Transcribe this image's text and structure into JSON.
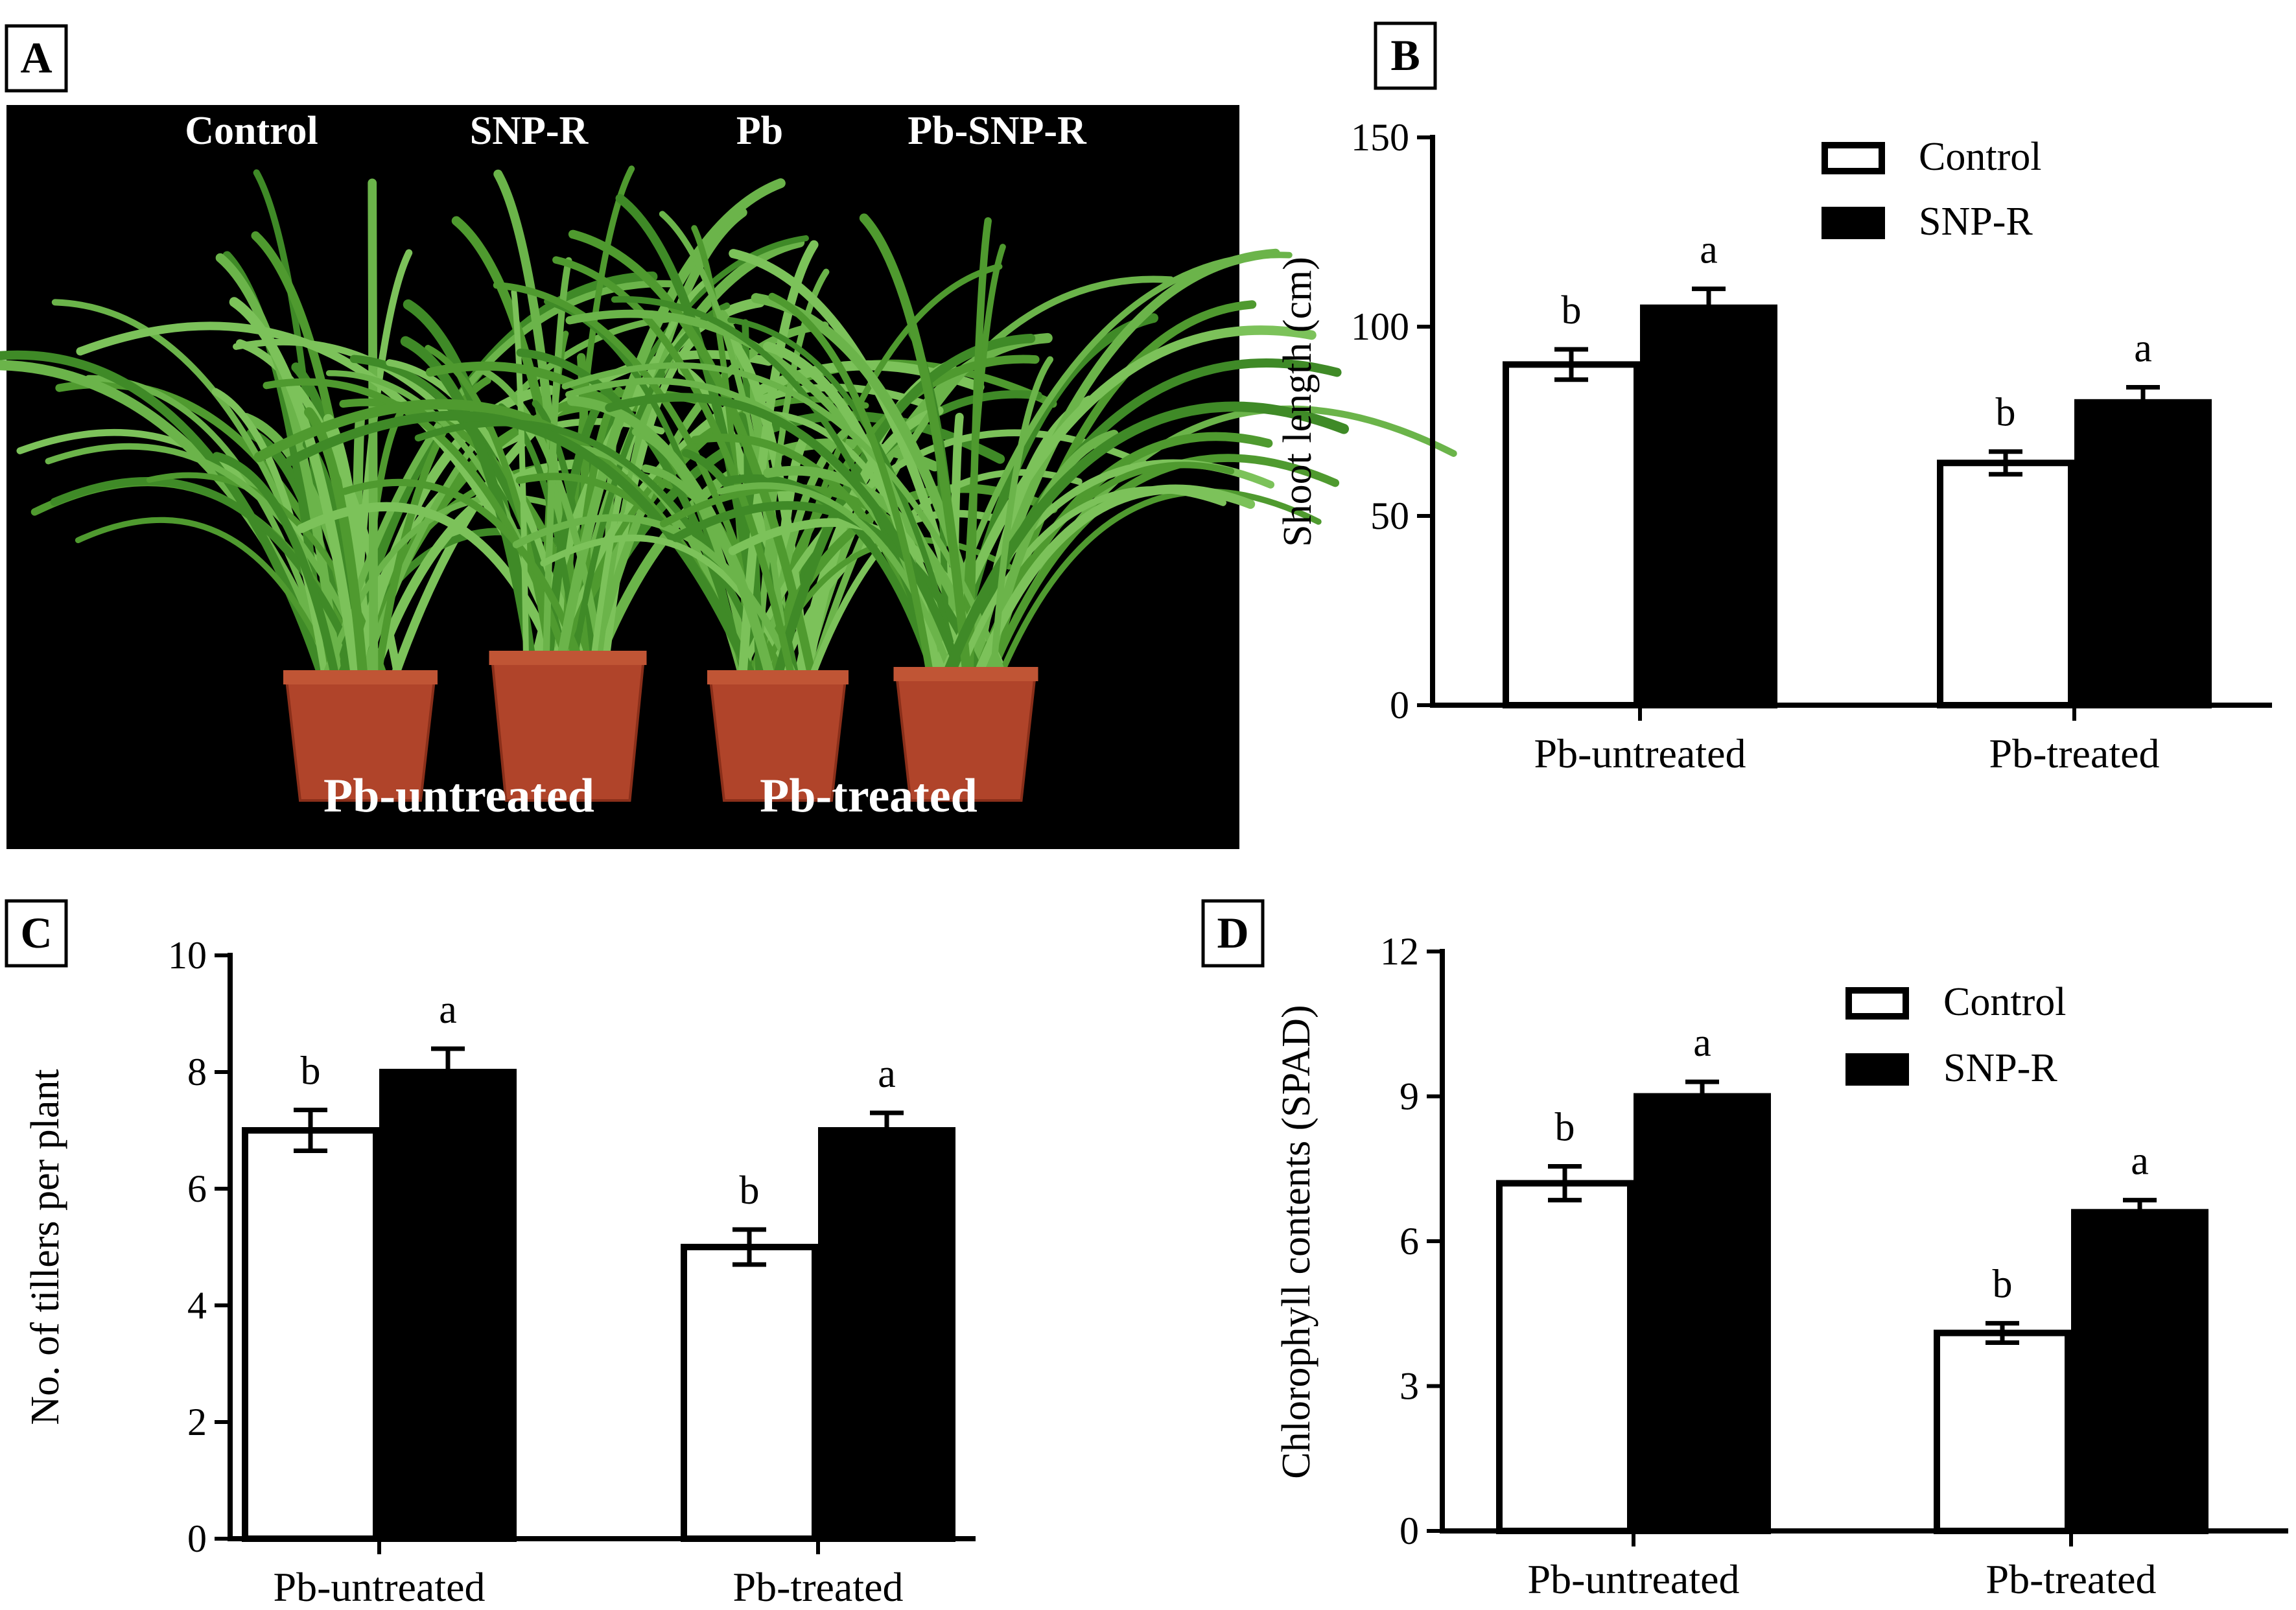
{
  "photo": {
    "panel_label": "A",
    "treatments": [
      "Control",
      "SNP-R",
      "Pb",
      "Pb-SNP-R"
    ],
    "groups": [
      "Pb-untreated",
      "Pb-treated"
    ]
  },
  "legend": {
    "control": "Control",
    "snp": "SNP-R"
  },
  "colors": {
    "control_fill": "#ffffff",
    "snp_fill": "#000000",
    "photo_bg": "#000000",
    "leaf": "#5aa83a",
    "pot": "#b0442a"
  },
  "chart_data": [
    {
      "panel": "B",
      "type": "bar",
      "categories": [
        "Pb-untreated",
        "Pb-treated"
      ],
      "series": [
        {
          "name": "Control",
          "values": [
            90,
            64
          ],
          "errors": [
            4,
            3
          ],
          "letters": [
            "b",
            "b"
          ]
        },
        {
          "name": "SNP-R",
          "values": [
            105,
            80
          ],
          "errors": [
            5,
            4
          ],
          "letters": [
            "a",
            "a"
          ]
        }
      ],
      "ylabel": "Shoot length (cm)",
      "ylim": [
        0,
        150
      ],
      "yticks": [
        0,
        50,
        100,
        150
      ],
      "legend": "top-right"
    },
    {
      "panel": "C",
      "type": "bar",
      "categories": [
        "Pb-untreated",
        "Pb-treated"
      ],
      "series": [
        {
          "name": "Control",
          "values": [
            7.0,
            5.0
          ],
          "errors": [
            0.35,
            0.3
          ],
          "letters": [
            "b",
            "b"
          ]
        },
        {
          "name": "SNP-R",
          "values": [
            8.0,
            7.0
          ],
          "errors": [
            0.4,
            0.3
          ],
          "letters": [
            "a",
            "a"
          ]
        }
      ],
      "ylabel": "No. of tillers per plant",
      "ylim": [
        0,
        10
      ],
      "yticks": [
        0,
        2,
        4,
        6,
        8,
        10
      ],
      "legend": "none"
    },
    {
      "panel": "D",
      "type": "bar",
      "categories": [
        "Pb-untreated",
        "Pb-treated"
      ],
      "series": [
        {
          "name": "Control",
          "values": [
            7.2,
            4.1
          ],
          "errors": [
            0.35,
            0.2
          ],
          "letters": [
            "b",
            "b"
          ]
        },
        {
          "name": "SNP-R",
          "values": [
            9.0,
            6.6
          ],
          "errors": [
            0.3,
            0.25
          ],
          "letters": [
            "a",
            "a"
          ]
        }
      ],
      "ylabel": "Chlorophyll contents (SPAD)",
      "ylim": [
        0,
        12
      ],
      "yticks": [
        0,
        3,
        6,
        9,
        12
      ],
      "legend": "top-right"
    }
  ]
}
